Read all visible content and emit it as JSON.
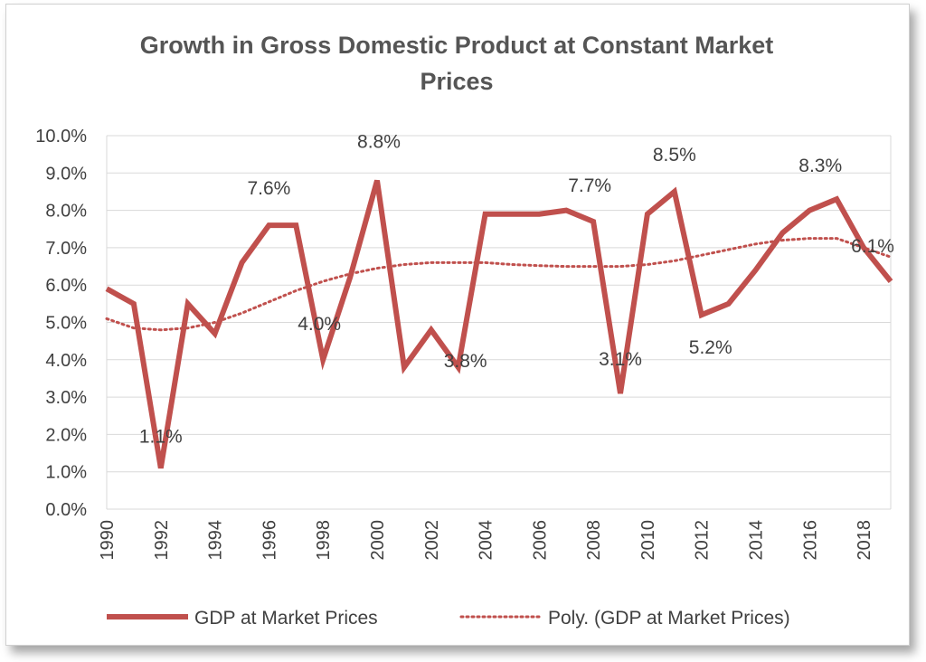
{
  "chart_data": {
    "type": "line",
    "title_line1": "Growth in Gross Domestic Product at Constant Market",
    "title_line2": "Prices",
    "y_ticks": [
      "0.0%",
      "1.0%",
      "2.0%",
      "3.0%",
      "4.0%",
      "5.0%",
      "6.0%",
      "7.0%",
      "8.0%",
      "9.0%",
      "10.0%"
    ],
    "ylim": [
      0,
      10
    ],
    "x_ticks": [
      "1990",
      "1992",
      "1994",
      "1996",
      "1998",
      "2000",
      "2002",
      "2004",
      "2006",
      "2008",
      "2010",
      "2012",
      "2014",
      "2016",
      "2018"
    ],
    "grid": true,
    "legend_position": "bottom",
    "series": [
      {
        "name": "GDP at Market Prices",
        "style": "solid",
        "color": "#c0504d",
        "x": [
          1990,
          1991,
          1992,
          1993,
          1994,
          1995,
          1996,
          1997,
          1998,
          1999,
          2000,
          2001,
          2002,
          2003,
          2004,
          2005,
          2006,
          2007,
          2008,
          2009,
          2010,
          2011,
          2012,
          2013,
          2014,
          2015,
          2016,
          2017,
          2018,
          2019
        ],
        "values": [
          5.9,
          5.5,
          1.1,
          5.5,
          4.7,
          6.6,
          7.6,
          7.6,
          4.0,
          6.2,
          8.8,
          3.8,
          4.8,
          3.8,
          7.9,
          7.9,
          7.9,
          8.0,
          7.7,
          3.1,
          7.9,
          8.5,
          5.2,
          5.5,
          6.4,
          7.4,
          8.0,
          8.3,
          7.0,
          6.1
        ]
      },
      {
        "name": "Poly. (GDP at Market Prices)",
        "style": "dotted",
        "color": "#c0504d",
        "x": [
          1990,
          1991,
          1992,
          1993,
          1994,
          1995,
          1996,
          1997,
          1998,
          1999,
          2000,
          2001,
          2002,
          2003,
          2004,
          2005,
          2006,
          2007,
          2008,
          2009,
          2010,
          2011,
          2012,
          2013,
          2014,
          2015,
          2016,
          2017,
          2018,
          2019
        ],
        "values": [
          5.1,
          4.85,
          4.8,
          4.85,
          5.0,
          5.25,
          5.55,
          5.85,
          6.1,
          6.3,
          6.45,
          6.55,
          6.6,
          6.6,
          6.6,
          6.55,
          6.52,
          6.5,
          6.5,
          6.5,
          6.55,
          6.65,
          6.8,
          6.95,
          7.1,
          7.2,
          7.25,
          7.25,
          7.0,
          6.75
        ]
      }
    ],
    "data_labels": [
      {
        "x": 1992,
        "value": 1.1,
        "text": "1.1%"
      },
      {
        "x": 1996,
        "value": 7.6,
        "text": "7.6%"
      },
      {
        "x": 1998,
        "value": 4.0,
        "text": "4.0%"
      },
      {
        "x": 2000,
        "value": 8.8,
        "text": "8.8%"
      },
      {
        "x": 2003,
        "value": 3.8,
        "text": "3.8%"
      },
      {
        "x": 2008,
        "value": 7.7,
        "text": "7.7%"
      },
      {
        "x": 2009,
        "value": 3.1,
        "text": "3.1%"
      },
      {
        "x": 2011,
        "value": 8.5,
        "text": "8.5%"
      },
      {
        "x": 2012,
        "value": 5.2,
        "text": "5.2%"
      },
      {
        "x": 2017,
        "value": 8.3,
        "text": "8.3%"
      },
      {
        "x": 2019,
        "value": 6.1,
        "text": "6.1%"
      }
    ]
  }
}
